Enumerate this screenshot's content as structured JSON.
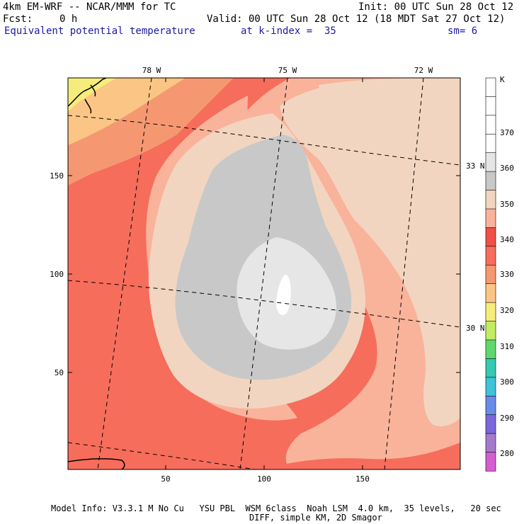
{
  "header": {
    "model_title": "4km EM-WRF -- NCAR/MMM for TC",
    "init": "Init: 00 UTC Sun 28 Oct 12",
    "fcst_label": "Fcst:",
    "fcst_value": "0 h",
    "valid": "Valid: 00 UTC Sun 28 Oct 12 (18 MDT Sat 27 Oct 12)",
    "field": "Equivalent potential temperature",
    "level": "at k-index =  35",
    "smoothing": "sm= 6"
  },
  "map": {
    "x_ticks": [
      "50",
      "100",
      "150"
    ],
    "y_ticks": [
      "150",
      "100",
      "50"
    ],
    "lon_labels": [
      "78 W",
      "75 W",
      "72 W"
    ],
    "lat_labels": [
      "33 N",
      "30 N"
    ],
    "colors": {
      "c370": "#ffffff",
      "c360": "#e6e6e6",
      "c355": "#c8c8c8",
      "c350": "#f2d5c0",
      "c345": "#f9b39a",
      "c340": "#f66d5c",
      "c335": "#ef5047",
      "c330": "#f59871",
      "c325": "#fbc585",
      "c320": "#f6ec7b"
    }
  },
  "colorbar": {
    "unit": "K",
    "labels": [
      "370",
      "360",
      "350",
      "340",
      "330",
      "320",
      "310",
      "300",
      "290",
      "280"
    ],
    "bins": [
      "#ffffff",
      "#ffffff",
      "#ffffff",
      "#ffffff",
      "#e6e6e6",
      "#c8c8c8",
      "#f2d5c0",
      "#f9b39a",
      "#ef5047",
      "#f66d5c",
      "#f59871",
      "#fbc585",
      "#f6ec7b",
      "#c2ec62",
      "#5fd86b",
      "#36c8b2",
      "#3ec3d8",
      "#6b8be8",
      "#7d67dc",
      "#a57acb",
      "#d45dcf"
    ]
  },
  "footer": {
    "line1": "Model Info: V3.3.1 M No Cu   YSU PBL  WSM 6class  Noah LSM  4.0 km,  35 levels,   20 sec",
    "line2": "DIFF, simple KM, 2D Smagor"
  }
}
